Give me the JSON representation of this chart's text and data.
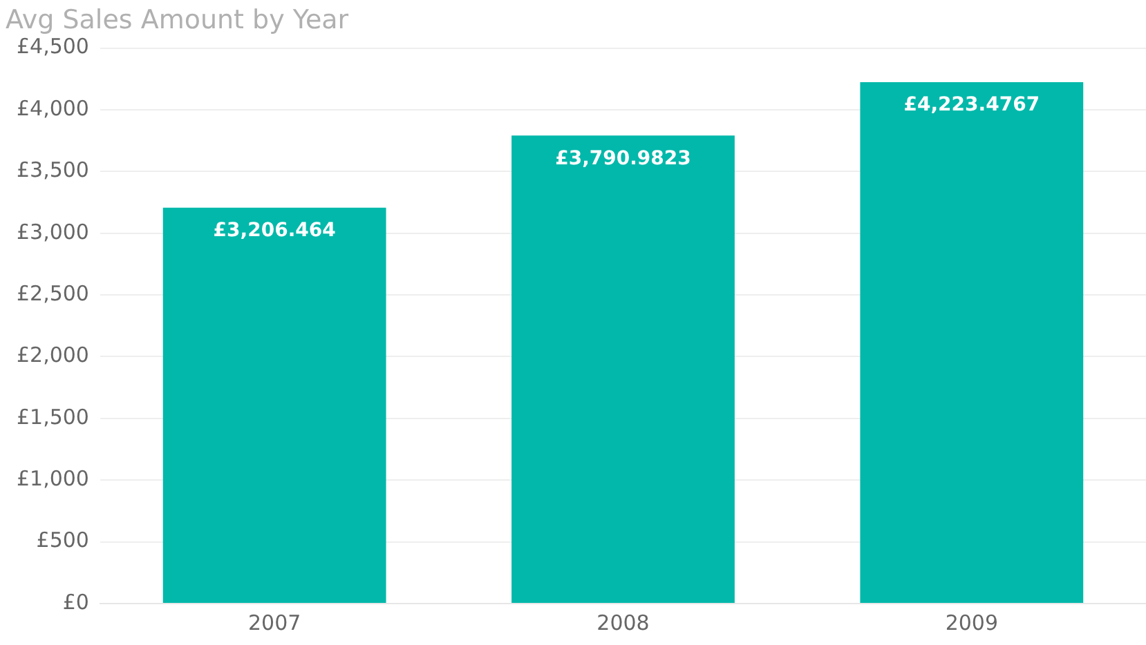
{
  "chart_data": {
    "type": "bar",
    "title": "Avg Sales Amount by Year",
    "categories": [
      "2007",
      "2008",
      "2009"
    ],
    "values": [
      3206.464,
      3790.9823,
      4223.4767
    ],
    "value_labels": [
      "£3,206.464",
      "£3,790.9823",
      "£4,223.4767"
    ],
    "color": "#01b8aa",
    "ylim": [
      0,
      4500
    ],
    "yticks": [
      {
        "value": 0,
        "label": "£0"
      },
      {
        "value": 500,
        "label": "£500"
      },
      {
        "value": 1000,
        "label": "£1,000"
      },
      {
        "value": 1500,
        "label": "£1,500"
      },
      {
        "value": 2000,
        "label": "£2,000"
      },
      {
        "value": 2500,
        "label": "£2,500"
      },
      {
        "value": 3000,
        "label": "£3,000"
      },
      {
        "value": 3500,
        "label": "£3,500"
      },
      {
        "value": 4000,
        "label": "£4,000"
      },
      {
        "value": 4500,
        "label": "£4,500"
      }
    ],
    "grid": "y"
  }
}
